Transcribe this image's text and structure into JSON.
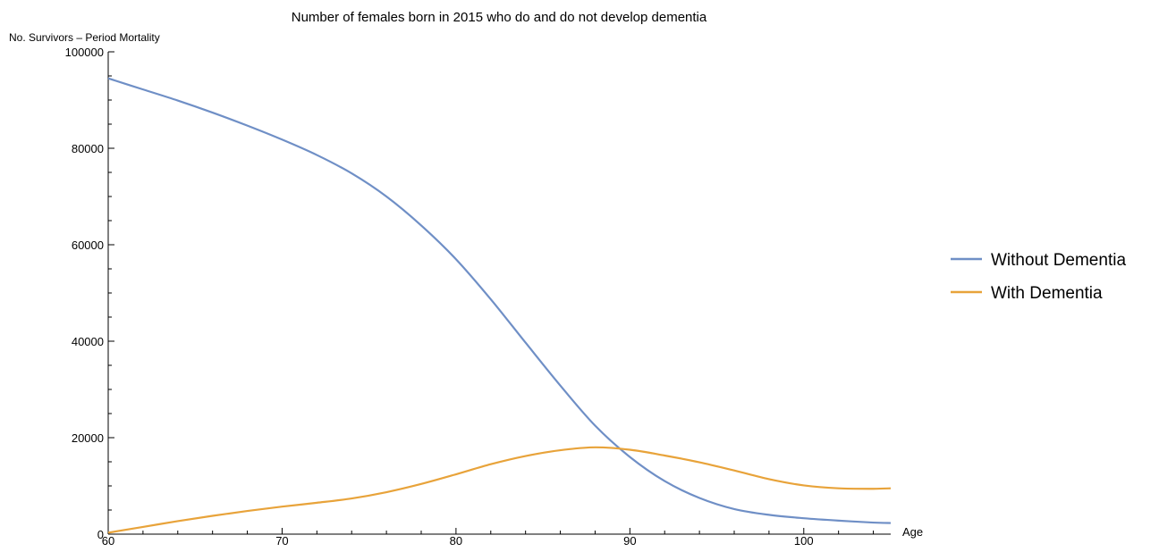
{
  "chart_data": {
    "type": "line",
    "title": "Number of females born in 2015 who do and do not develop dementia",
    "ylabel": "No. Survivors – Period Mortality",
    "xlabel": "Age",
    "xlim": [
      60,
      105
    ],
    "ylim": [
      0,
      100000
    ],
    "x_ticks": [
      60,
      70,
      80,
      90,
      100
    ],
    "y_ticks": [
      0,
      20000,
      40000,
      60000,
      80000,
      100000
    ],
    "x_tick_labels": [
      "60",
      "70",
      "80",
      "90",
      "100"
    ],
    "y_tick_labels": [
      "0",
      "20000",
      "40000",
      "60000",
      "80000",
      "100000"
    ],
    "grid": false,
    "legend_position": "right",
    "series": [
      {
        "name": "Without Dementia",
        "color": "#6f8fc6",
        "x": [
          60,
          62,
          64,
          66,
          68,
          70,
          72,
          74,
          76,
          78,
          80,
          82,
          84,
          86,
          88,
          90,
          92,
          94,
          96,
          98,
          100,
          102,
          104,
          105
        ],
        "values": [
          94500,
          92200,
          89900,
          87400,
          84700,
          81800,
          78600,
          74800,
          70000,
          64000,
          57000,
          48700,
          39700,
          30800,
          22500,
          16000,
          11000,
          7500,
          5200,
          4000,
          3300,
          2800,
          2400,
          2300
        ]
      },
      {
        "name": "With Dementia",
        "color": "#e8a33a",
        "x": [
          60,
          62,
          64,
          66,
          68,
          70,
          72,
          74,
          76,
          78,
          80,
          82,
          84,
          86,
          88,
          90,
          92,
          94,
          96,
          98,
          100,
          102,
          104,
          105
        ],
        "values": [
          300,
          1500,
          2700,
          3800,
          4800,
          5700,
          6500,
          7400,
          8700,
          10400,
          12400,
          14500,
          16200,
          17400,
          18000,
          17500,
          16300,
          14900,
          13200,
          11400,
          10100,
          9500,
          9400,
          9500
        ]
      }
    ]
  }
}
